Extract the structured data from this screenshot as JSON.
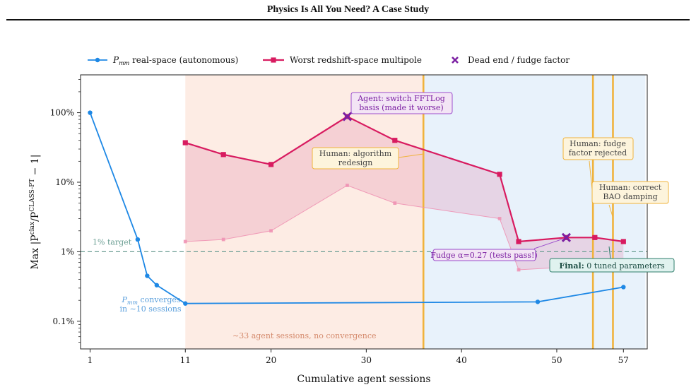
{
  "header": {
    "title": "Physics Is All You Need? A Case Study"
  },
  "chart_data": {
    "type": "line",
    "xlabel": "Cumulative agent sessions",
    "ylabel_main": "Max |P",
    "ylabel_sup1": "clax",
    "ylabel_mid": "/P",
    "ylabel_sup2": "CLASS-PT",
    "ylabel_end": " − 1|",
    "x_scale": "linear",
    "y_scale": "log",
    "xlim": [
      0,
      59.5
    ],
    "ylim": [
      0.04,
      350
    ],
    "x_ticks": [
      1,
      11,
      20,
      30,
      40,
      50,
      57
    ],
    "x_tick_labels": [
      "1",
      "11",
      "20",
      "30",
      "40",
      "50",
      "57"
    ],
    "y_ticks": [
      0.1,
      1,
      10,
      100
    ],
    "y_tick_labels": [
      "0.1%",
      "1%",
      "10%",
      "100%"
    ],
    "legend": {
      "position": "top",
      "items": [
        {
          "label_main": "P",
          "label_sub": "mm",
          "label_rest": " real-space (autonomous)",
          "marker": "circle",
          "color": "#1e88e5"
        },
        {
          "label_main": "Worst redshift-space multipole",
          "marker": "square",
          "color": "#d81b60"
        },
        {
          "label_main": "Dead end / fudge factor",
          "marker": "x",
          "color": "#7b1fa2"
        }
      ]
    },
    "series": [
      {
        "name": "P_mm real-space (autonomous)",
        "color": "#1e88e5",
        "x": [
          1,
          6,
          7,
          8,
          11,
          48,
          57
        ],
        "y": [
          100,
          1.5,
          0.45,
          0.33,
          0.18,
          0.19,
          0.31
        ]
      },
      {
        "name": "Worst redshift-space multipole",
        "color": "#d81b60",
        "x": [
          11,
          15,
          20,
          28,
          33,
          44,
          46,
          51,
          54,
          57
        ],
        "y": [
          37,
          25,
          18,
          88,
          40,
          13,
          1.4,
          1.6,
          1.6,
          1.4
        ]
      },
      {
        "name": "Best redshift-space multipole",
        "color": "#ef8fb1",
        "x": [
          11,
          15,
          20,
          28,
          33,
          44,
          46,
          51,
          54,
          57
        ],
        "y": [
          1.4,
          1.5,
          2.0,
          9.0,
          5.0,
          3.0,
          0.55,
          0.6,
          0.6,
          0.55
        ]
      }
    ],
    "dead_ends": [
      {
        "x": 28,
        "y": 88
      },
      {
        "x": 51,
        "y": 1.6
      }
    ],
    "target": {
      "y": 1,
      "label": "1% target"
    },
    "regions": [
      {
        "x0": 11,
        "x1": 36,
        "color": "#fdece4",
        "label": "∼33 agent sessions, no convergence",
        "label_color": "#d4896b"
      },
      {
        "x0": 36,
        "x1": 59.3,
        "color": "#e8f2fb"
      }
    ],
    "human_lines": [
      36,
      53.8,
      55.9
    ],
    "human_line_color": "#f0b33c",
    "annotations": [
      {
        "lines": [
          "Agent: switch FFTLog",
          "basis (made it worse)"
        ],
        "kind": "agent"
      },
      {
        "lines": [
          "Human: algorithm",
          "redesign"
        ],
        "kind": "human"
      },
      {
        "lines": [
          "Human: fudge",
          "factor rejected"
        ],
        "kind": "human"
      },
      {
        "lines": [
          "Human: correct",
          "BAO damping"
        ],
        "kind": "human"
      },
      {
        "lines": [
          "Fudge α=0.27 (tests pass!)"
        ],
        "kind": "agent"
      },
      {
        "lines_bold": "Final:",
        "lines_rest": " 0 tuned parameters",
        "kind": "final"
      },
      {
        "lines": [
          "P",
          "mm",
          " converges",
          "in ∼10 sessions"
        ],
        "kind": "note"
      }
    ],
    "colors": {
      "blue": "#1e88e5",
      "magenta": "#d81b60",
      "purple": "#7b1fa2",
      "gold": "#f0b33c",
      "teal": "#2e7d6b",
      "target_line": "#6b9e93"
    }
  }
}
